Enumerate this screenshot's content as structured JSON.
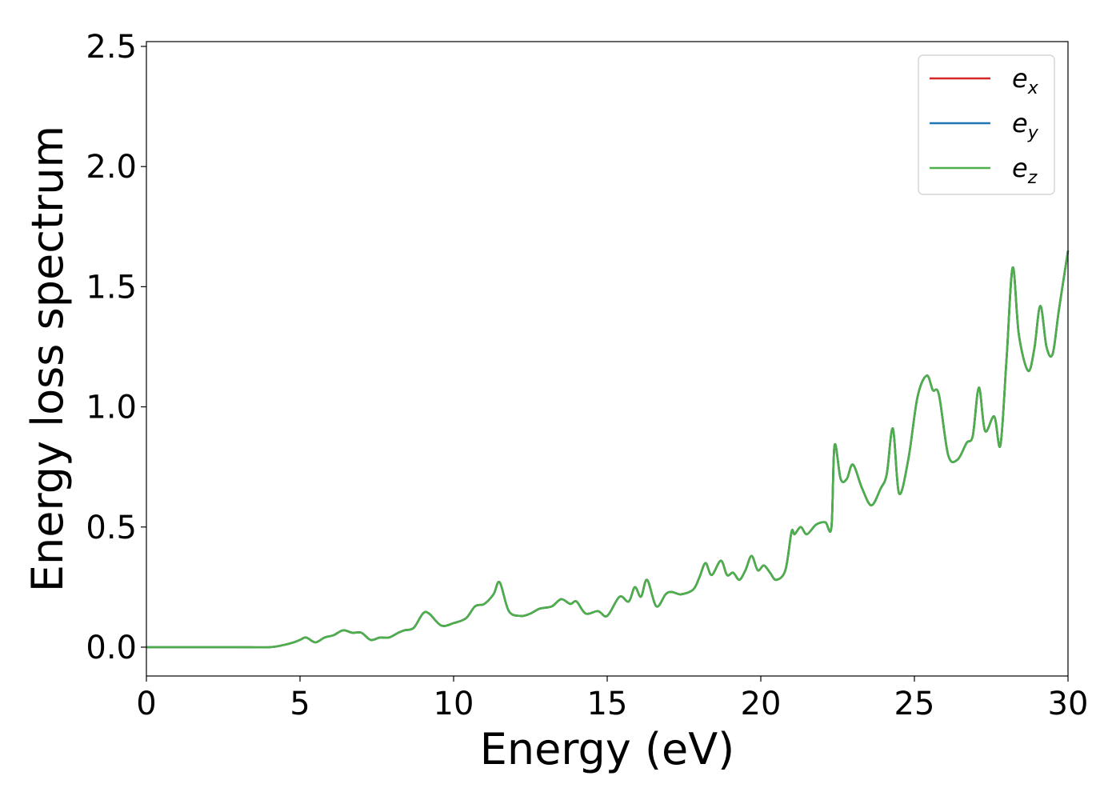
{
  "chart_data": {
    "type": "line",
    "title": "",
    "xlabel": "Energy (eV)",
    "ylabel": "Energy loss spectrum",
    "xlim": [
      0,
      30
    ],
    "ylim": [
      -0.12,
      2.52
    ],
    "xticks": [
      0,
      5,
      10,
      15,
      20,
      25,
      30
    ],
    "xtick_labels": [
      "0",
      "5",
      "10",
      "15",
      "20",
      "25",
      "30"
    ],
    "yticks": [
      0.0,
      0.5,
      1.0,
      1.5,
      2.0,
      2.5
    ],
    "ytick_labels": [
      "0.0",
      "0.5",
      "1.0",
      "1.5",
      "2.0",
      "2.5"
    ],
    "grid": false,
    "legend_position": "top-right",
    "colors": {
      "ex": "#d62728",
      "ey": "#1f77b4",
      "ez": "#4daf4a"
    },
    "series": [
      {
        "name": "e_x",
        "label_base": "e",
        "label_sub": "x",
        "color": "#d62728"
      },
      {
        "name": "e_y",
        "label_base": "e",
        "label_sub": "y",
        "color": "#1f77b4"
      },
      {
        "name": "e_z",
        "label_base": "e",
        "label_sub": "z",
        "color": "#4daf4a"
      }
    ],
    "x": [
      0,
      1,
      2,
      3,
      4,
      4.5,
      4.8,
      5.0,
      5.2,
      5.5,
      5.8,
      6.1,
      6.4,
      6.7,
      7.0,
      7.3,
      7.6,
      7.9,
      8.2,
      8.4,
      8.7,
      9.0,
      9.2,
      9.6,
      10.0,
      10.4,
      10.7,
      11.0,
      11.3,
      11.5,
      11.8,
      12.2,
      12.5,
      12.8,
      13.2,
      13.5,
      13.8,
      14.0,
      14.3,
      14.7,
      15.0,
      15.4,
      15.7,
      15.9,
      16.1,
      16.3,
      16.6,
      16.9,
      17.1,
      17.4,
      17.8,
      18.0,
      18.2,
      18.4,
      18.7,
      18.9,
      19.1,
      19.3,
      19.5,
      19.7,
      19.9,
      20.1,
      20.3,
      20.5,
      20.8,
      21.0,
      21.1,
      21.3,
      21.5,
      21.8,
      22.1,
      22.3,
      22.4,
      22.6,
      22.8,
      23.0,
      23.3,
      23.6,
      23.9,
      24.1,
      24.3,
      24.5,
      24.8,
      25.1,
      25.4,
      25.6,
      25.8,
      26.1,
      26.4,
      26.7,
      26.9,
      27.1,
      27.3,
      27.6,
      27.8,
      28.0,
      28.2,
      28.4,
      28.7,
      28.9,
      29.1,
      29.3,
      29.5,
      29.7,
      30.0
    ],
    "y": [
      0.0,
      0.0,
      0.0,
      0.0,
      0.0,
      0.01,
      0.02,
      0.03,
      0.04,
      0.02,
      0.04,
      0.05,
      0.07,
      0.06,
      0.06,
      0.03,
      0.04,
      0.04,
      0.06,
      0.07,
      0.08,
      0.14,
      0.14,
      0.09,
      0.1,
      0.12,
      0.17,
      0.18,
      0.22,
      0.27,
      0.15,
      0.13,
      0.14,
      0.16,
      0.17,
      0.2,
      0.18,
      0.19,
      0.14,
      0.15,
      0.13,
      0.21,
      0.19,
      0.25,
      0.21,
      0.28,
      0.17,
      0.22,
      0.23,
      0.22,
      0.24,
      0.29,
      0.35,
      0.3,
      0.36,
      0.3,
      0.31,
      0.28,
      0.32,
      0.38,
      0.32,
      0.34,
      0.31,
      0.28,
      0.32,
      0.48,
      0.47,
      0.5,
      0.47,
      0.51,
      0.52,
      0.5,
      0.84,
      0.7,
      0.7,
      0.76,
      0.66,
      0.59,
      0.66,
      0.72,
      0.91,
      0.64,
      0.78,
      1.04,
      1.13,
      1.07,
      1.05,
      0.8,
      0.78,
      0.85,
      0.88,
      1.08,
      0.9,
      0.96,
      0.84,
      1.2,
      1.58,
      1.3,
      1.15,
      1.24,
      1.42,
      1.25,
      1.22,
      1.4,
      1.65
    ]
  }
}
